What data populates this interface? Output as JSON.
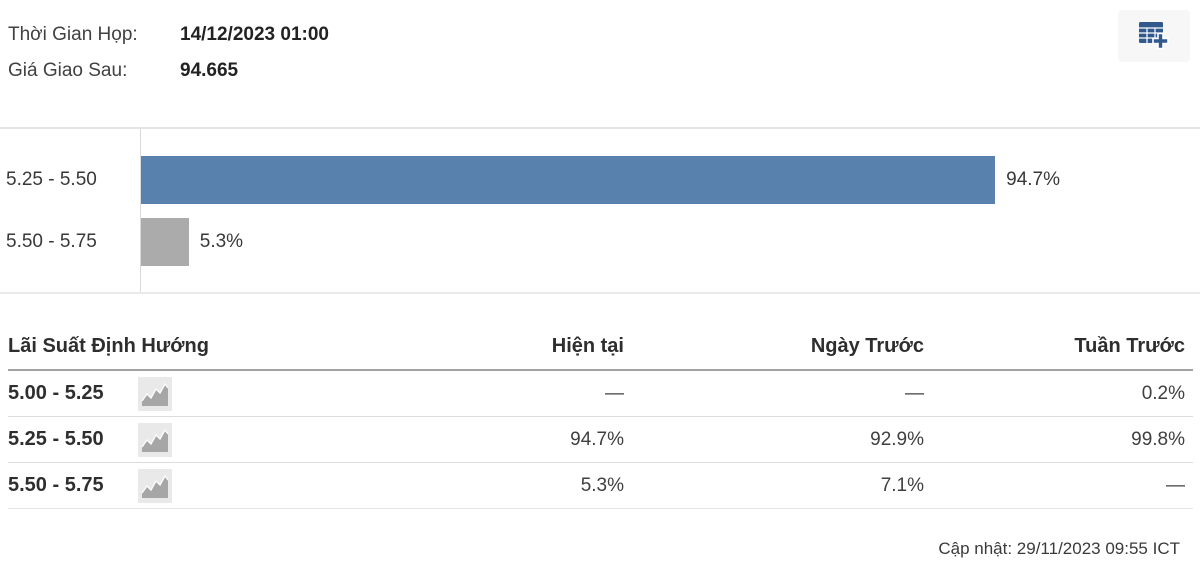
{
  "header": {
    "meeting_time_label": "Thời Gian Họp:",
    "meeting_time_value": "14/12/2023 01:00",
    "futures_price_label": "Giá Giao Sau:",
    "futures_price_value": "94.665"
  },
  "chart_data": {
    "type": "bar",
    "orientation": "horizontal",
    "categories": [
      "5.25 - 5.50",
      "5.50 - 5.75"
    ],
    "values": [
      94.7,
      5.3
    ],
    "value_labels": [
      "94.7%",
      "5.3%"
    ],
    "bar_colors": [
      "#5881ad",
      "#ababab"
    ],
    "xlim": [
      0,
      100
    ],
    "grid": false,
    "title": "",
    "xlabel": "",
    "ylabel": "",
    "legend": false
  },
  "table": {
    "headers": {
      "rate": "Lãi Suất Định Hướng",
      "current": "Hiện tại",
      "prev_day": "Ngày Trước",
      "prev_week": "Tuần Trước"
    },
    "rows": [
      {
        "rate": "5.00 - 5.25",
        "current": "—",
        "prev_day": "—",
        "prev_week": "0.2%"
      },
      {
        "rate": "5.25 - 5.50",
        "current": "94.7%",
        "prev_day": "92.9%",
        "prev_week": "99.8%"
      },
      {
        "rate": "5.50 - 5.75",
        "current": "5.3%",
        "prev_day": "7.1%",
        "prev_week": "—"
      }
    ]
  },
  "footer": {
    "updated_text": "Cập nhật: 29/11/2023 09:55 ICT"
  },
  "colors": {
    "bar_primary": "#5881ad",
    "bar_secondary": "#ababab",
    "icon_blue": "#31598e"
  }
}
